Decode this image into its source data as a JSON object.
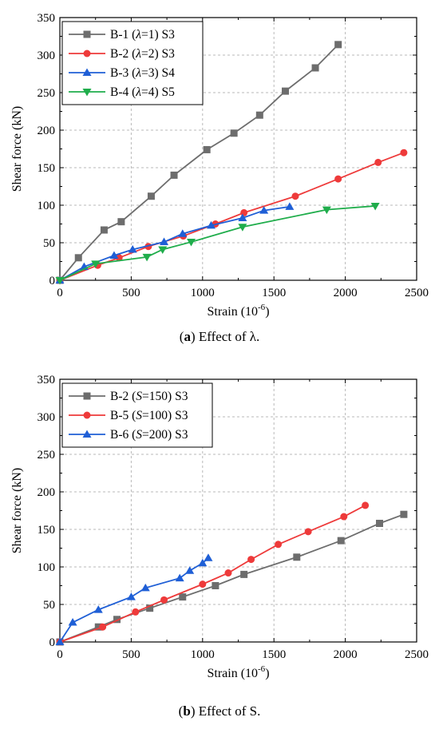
{
  "chart_data": [
    {
      "type": "line",
      "xlabel": "Strain (10",
      "xlabel_sup": "-6",
      "xlabel_end": ")",
      "ylabel": "Shear force (kN)",
      "xlim": [
        0,
        2500
      ],
      "ylim": [
        0,
        350
      ],
      "xticks": [
        0,
        500,
        1000,
        1500,
        2000,
        2500
      ],
      "yticks": [
        0,
        50,
        100,
        150,
        200,
        250,
        300,
        350
      ],
      "grid": true,
      "legend_position": "top-left",
      "caption": {
        "letter": "a",
        "text": "Effect of λ."
      },
      "series": [
        {
          "label_pre": "B-1 (",
          "label_sym": "λ",
          "label_post": "=1)  S3",
          "color": "#6d6d6d",
          "marker": "square",
          "x": [
            0,
            130,
            310,
            430,
            640,
            800,
            1030,
            1220,
            1400,
            1580,
            1790,
            1950
          ],
          "y": [
            0,
            30,
            67,
            78,
            112,
            140,
            174,
            196,
            220,
            252,
            283,
            314
          ]
        },
        {
          "label_pre": "B-2 (",
          "label_sym": "λ",
          "label_post": "=2)  S3",
          "color": "#ee3a3a",
          "marker": "circle",
          "x": [
            0,
            265,
            415,
            620,
            865,
            1090,
            1290,
            1650,
            1950,
            2230,
            2410
          ],
          "y": [
            0,
            20,
            30,
            45,
            59,
            75,
            90,
            112,
            135,
            157,
            170
          ]
        },
        {
          "label_pre": "B-3 (",
          "label_sym": "λ",
          "label_post": "=3)  S4",
          "color": "#1f5fd6",
          "marker": "triangle-up",
          "x": [
            0,
            170,
            380,
            510,
            730,
            860,
            1060,
            1280,
            1430,
            1610
          ],
          "y": [
            0,
            18,
            33,
            41,
            51,
            62,
            73,
            83,
            93,
            98
          ]
        },
        {
          "label_pre": "B-4 (",
          "label_sym": "λ",
          "label_post": "=4)  S5",
          "color": "#1fad4b",
          "marker": "triangle-down",
          "x": [
            0,
            250,
            610,
            720,
            920,
            1280,
            1870,
            2210
          ],
          "y": [
            0,
            22,
            31,
            41,
            51,
            71,
            94,
            99
          ]
        }
      ]
    },
    {
      "type": "line",
      "xlabel": "Strain (10",
      "xlabel_sup": "-6",
      "xlabel_end": ")",
      "ylabel": "Shear force (kN)",
      "xlim": [
        0,
        2500
      ],
      "ylim": [
        0,
        350
      ],
      "xticks": [
        0,
        500,
        1000,
        1500,
        2000,
        2500
      ],
      "yticks": [
        0,
        50,
        100,
        150,
        200,
        250,
        300,
        350
      ],
      "grid": true,
      "legend_position": "top-left",
      "caption": {
        "letter": "b",
        "text": "Effect of S."
      },
      "series": [
        {
          "label_pre": "B-2 (",
          "label_sym": "S",
          "label_post": "=150)  S3",
          "color": "#6d6d6d",
          "marker": "square",
          "x": [
            0,
            270,
            400,
            630,
            860,
            1090,
            1290,
            1660,
            1970,
            2240,
            2410
          ],
          "y": [
            0,
            20,
            30,
            45,
            60,
            75,
            90,
            113,
            135,
            158,
            170
          ]
        },
        {
          "label_pre": "B-5 (",
          "label_sym": "S",
          "label_post": "=100)  S3",
          "color": "#ee3a3a",
          "marker": "circle",
          "x": [
            0,
            300,
            530,
            730,
            1000,
            1180,
            1340,
            1530,
            1740,
            1990,
            2140
          ],
          "y": [
            0,
            20,
            40,
            56,
            77,
            92,
            110,
            130,
            147,
            167,
            182
          ]
        },
        {
          "label_pre": "B-6 (",
          "label_sym": "S",
          "label_post": "=200)  S3",
          "color": "#1f5fd6",
          "marker": "triangle-up",
          "x": [
            0,
            90,
            270,
            500,
            600,
            840,
            910,
            1000,
            1040
          ],
          "y": [
            0,
            26,
            43,
            60,
            72,
            85,
            95,
            105,
            112
          ]
        }
      ]
    }
  ]
}
